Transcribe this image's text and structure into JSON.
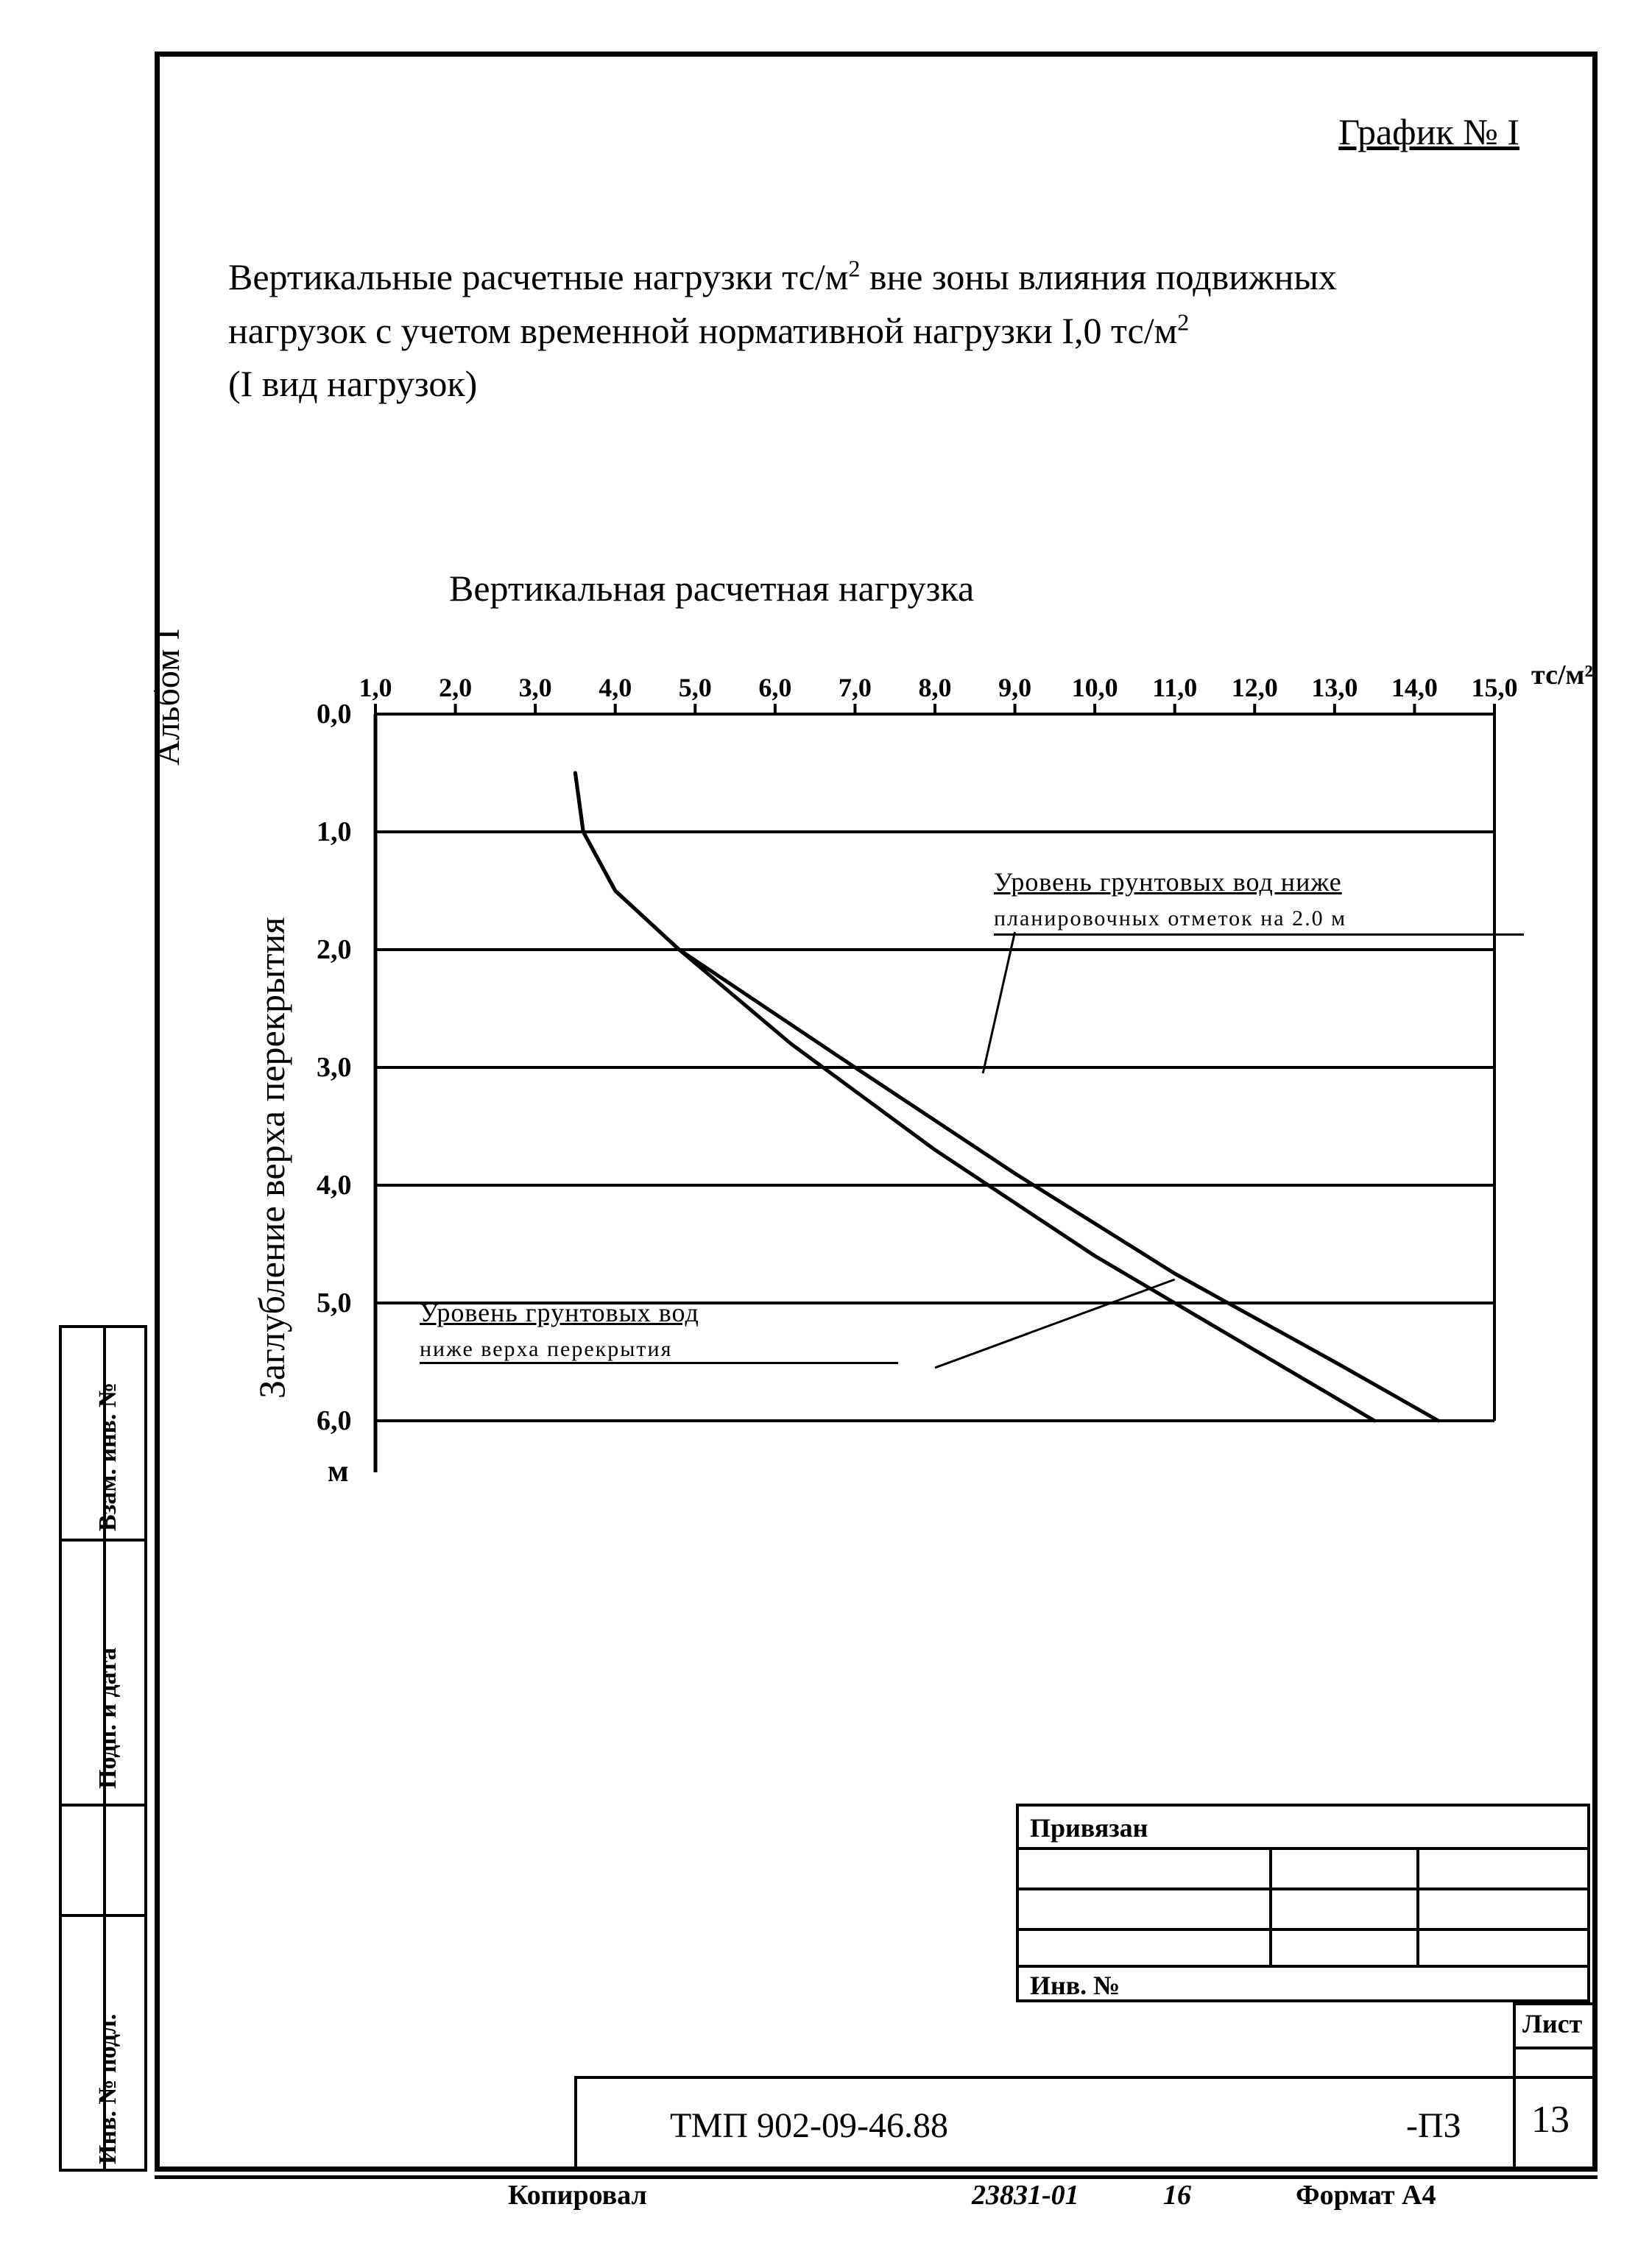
{
  "album_label": "Альбом I",
  "graph_number": "График № I",
  "description_line1": "Вертикальные расчетные нагрузки тс/м",
  "description_exp1": "2",
  "description_line1b": " вне зоны влияния подвижных",
  "description_line2": "нагрузок с учетом временной нормативной нагрузки I,0 тс/м",
  "description_exp2": "2",
  "description_line3": "(I вид нагрузок)",
  "chart_title": "Вертикальная расчетная нагрузка",
  "y_axis_label": "Заглубление верха перекрытия",
  "x_unit": "тс/м²",
  "y_unit": "м",
  "stamp_labels": {
    "inv_podl": "Инв. № подл.",
    "podp_data": "Подп. и дата",
    "vzam_inv": "Взам. инв. №"
  },
  "chart": {
    "type": "line",
    "x_ticks": [
      "1,0",
      "2,0",
      "3,0",
      "4,0",
      "5,0",
      "6,0",
      "7,0",
      "8,0",
      "9,0",
      "10,0",
      "11,0",
      "12,0",
      "13,0",
      "14,0",
      "15,0"
    ],
    "y_ticks": [
      "0,0",
      "1,0",
      "2,0",
      "3,0",
      "4,0",
      "5,0",
      "6,0"
    ],
    "xlim": [
      1,
      15
    ],
    "ylim": [
      0,
      6
    ],
    "grid_color": "#000000",
    "line_color": "#000000",
    "line_width": 5,
    "background_color": "#ffffff",
    "curve1_label_top": "Уровень грунтовых вод ниже",
    "curve1_label_bot": "планировочных отметок на 2.0 м",
    "curve2_label_top": "Уровень грунтовых вод",
    "curve2_label_bot": "ниже верха перекрытия",
    "curve1_points": [
      [
        3.5,
        0.5
      ],
      [
        3.6,
        1.0
      ],
      [
        4.0,
        1.5
      ],
      [
        4.8,
        2.0
      ],
      [
        6.2,
        2.8
      ],
      [
        8.0,
        3.7
      ],
      [
        10.0,
        4.6
      ],
      [
        12.0,
        5.4
      ],
      [
        13.5,
        6.0
      ]
    ],
    "curve2_points": [
      [
        3.5,
        0.5
      ],
      [
        3.6,
        1.0
      ],
      [
        4.0,
        1.5
      ],
      [
        4.8,
        2.0
      ],
      [
        7.0,
        3.0
      ],
      [
        9.0,
        3.9
      ],
      [
        11.0,
        4.75
      ],
      [
        13.0,
        5.5
      ],
      [
        14.3,
        6.0
      ]
    ]
  },
  "annotations": {
    "priviazan": "Привязан",
    "inv_no": "Инв. №"
  },
  "titleblock": {
    "doc_code": "ТМП 902-09-46.88",
    "suffix": "-ПЗ",
    "sheet_label": "Лист",
    "sheet_no": "13",
    "kopiroval": "Копировал",
    "order_no": "23831-01",
    "order_sub": "16",
    "format": "Формат А4"
  }
}
